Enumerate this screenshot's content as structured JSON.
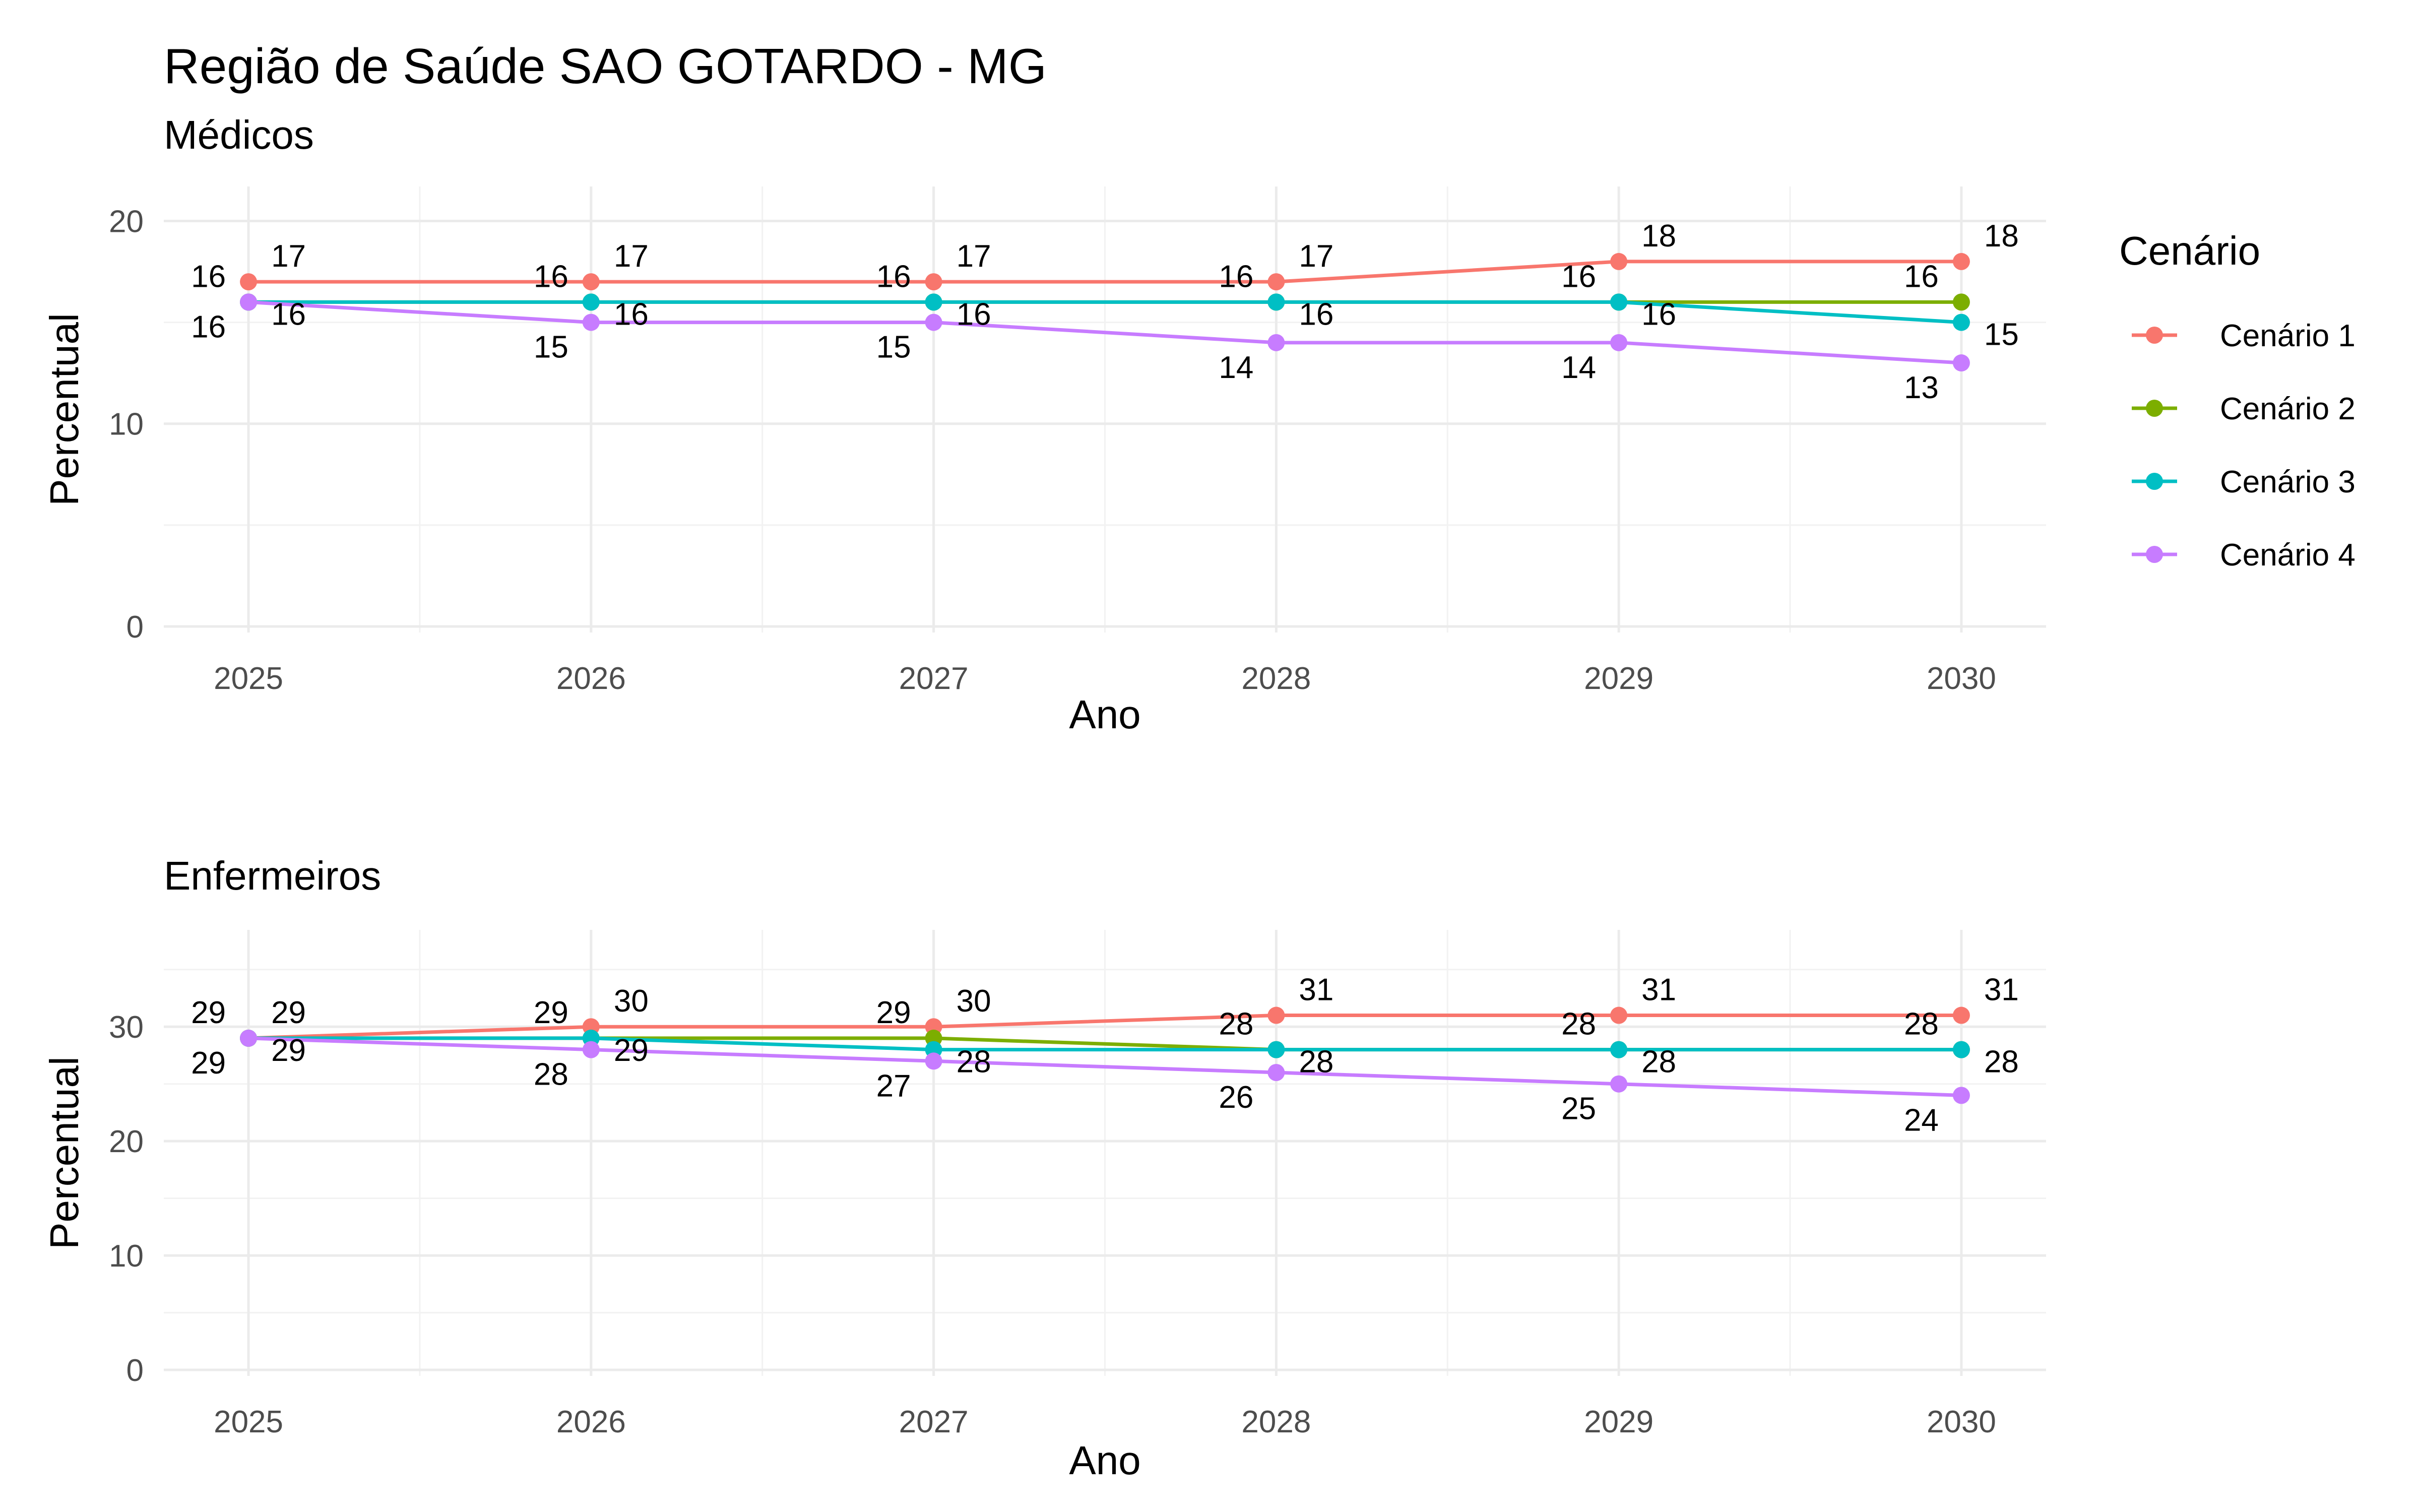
{
  "page": {
    "title": "Região de Saúde SAO GOTARDO - MG"
  },
  "legend": {
    "title": "Cenário"
  },
  "series_colors": {
    "Cenário 1": "#F8766D",
    "Cenário 2": "#7CAE00",
    "Cenário 3": "#00BFC4",
    "Cenário 4": "#C77CFF"
  },
  "chart_data": [
    {
      "type": "line",
      "title": "Médicos",
      "xlabel": "Ano",
      "ylabel": "Percentual",
      "x": [
        2025,
        2026,
        2027,
        2028,
        2029,
        2030
      ],
      "ylim": [
        0,
        22
      ],
      "yticks": [
        0,
        10,
        20
      ],
      "grid": true,
      "legend_position": "right",
      "series": [
        {
          "name": "Cenário 1",
          "values": [
            17,
            17,
            17,
            17,
            18,
            18
          ]
        },
        {
          "name": "Cenário 2",
          "values": [
            16,
            16,
            16,
            16,
            16,
            16
          ]
        },
        {
          "name": "Cenário 3",
          "values": [
            16,
            16,
            16,
            16,
            16,
            15
          ]
        },
        {
          "name": "Cenário 4",
          "values": [
            16,
            15,
            15,
            14,
            14,
            13
          ]
        }
      ]
    },
    {
      "type": "line",
      "title": "Enfermeiros",
      "xlabel": "Ano",
      "ylabel": "Percentual",
      "x": [
        2025,
        2026,
        2027,
        2028,
        2029,
        2030
      ],
      "ylim": [
        0,
        39
      ],
      "yticks": [
        0,
        10,
        20,
        30
      ],
      "grid": true,
      "legend_position": "right",
      "series": [
        {
          "name": "Cenário 1",
          "values": [
            29,
            30,
            30,
            31,
            31,
            31
          ]
        },
        {
          "name": "Cenário 2",
          "values": [
            29,
            29,
            29,
            28,
            28,
            28
          ]
        },
        {
          "name": "Cenário 3",
          "values": [
            29,
            29,
            28,
            28,
            28,
            28
          ]
        },
        {
          "name": "Cenário 4",
          "values": [
            29,
            28,
            27,
            26,
            25,
            24
          ]
        }
      ]
    }
  ]
}
